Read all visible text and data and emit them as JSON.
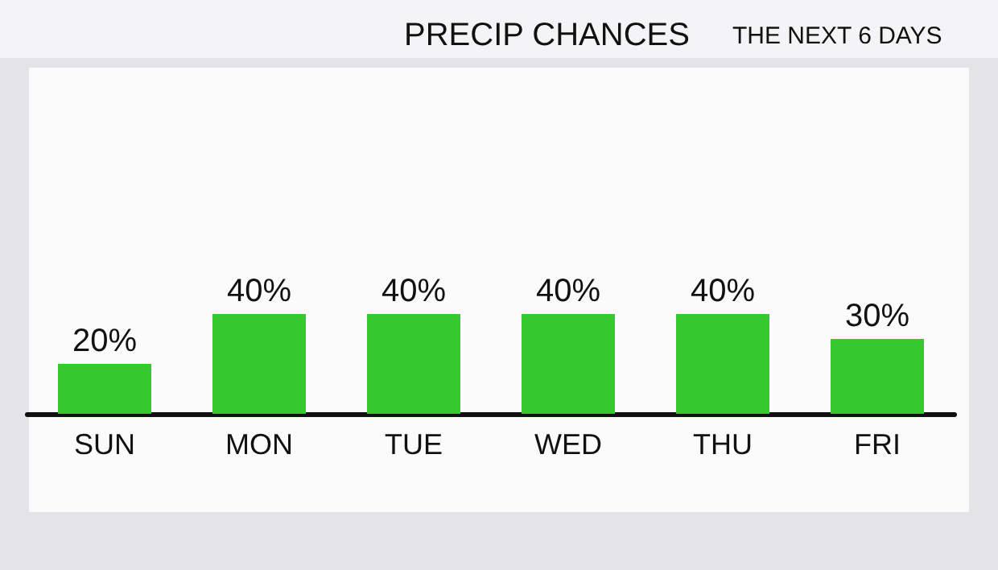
{
  "chart_data": {
    "type": "bar",
    "title": "PRECIP CHANCES",
    "subtitle": "THE NEXT 6 DAYS",
    "categories": [
      "SUN",
      "MON",
      "TUE",
      "WED",
      "THU",
      "FRI"
    ],
    "values": [
      20,
      40,
      40,
      40,
      40,
      30
    ],
    "value_labels": [
      "20%",
      "40%",
      "40%",
      "40%",
      "40%",
      "30%"
    ],
    "color": "#33c92f"
  }
}
